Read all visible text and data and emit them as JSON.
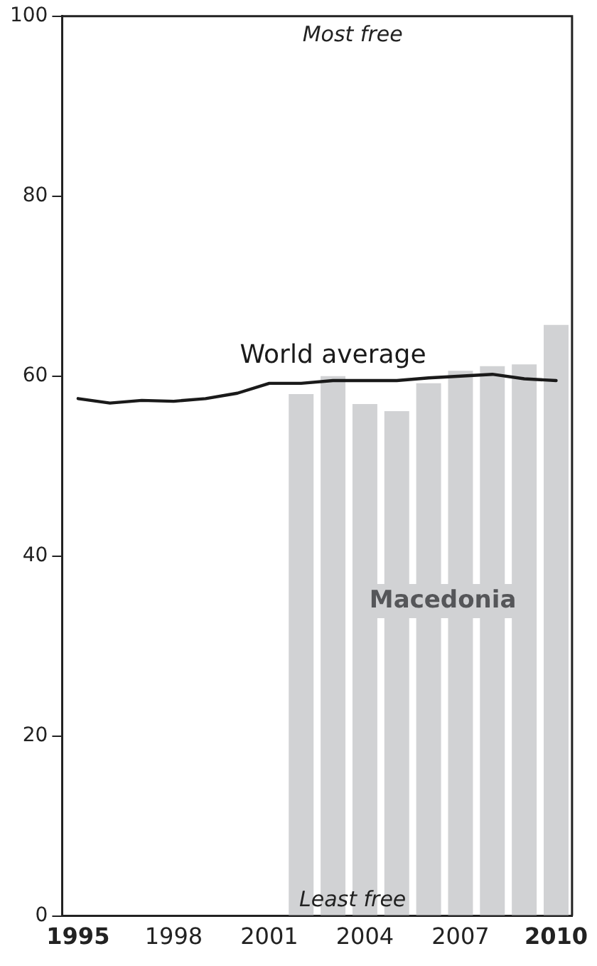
{
  "chart_data": {
    "type": "bar",
    "categories": [
      "1995",
      null,
      null,
      "1998",
      null,
      null,
      "2001",
      null,
      null,
      "2004",
      null,
      null,
      "2007",
      null,
      null,
      "2010"
    ],
    "series": [
      {
        "name": "Macedonia",
        "color": "#d1d2d4",
        "values": [
          null,
          null,
          null,
          null,
          null,
          null,
          null,
          58.0,
          60.0,
          56.9,
          56.1,
          59.2,
          60.6,
          61.1,
          61.3,
          65.7
        ]
      },
      {
        "name": "World average",
        "type": "line",
        "color": "#1a1a1a",
        "values": [
          57.5,
          57.0,
          57.3,
          57.2,
          57.5,
          58.1,
          59.2,
          59.2,
          59.5,
          59.5,
          59.5,
          59.8,
          60.0,
          60.2,
          59.7,
          59.5
        ]
      }
    ],
    "ylim": [
      0,
      100
    ],
    "yticks": [
      0,
      20,
      40,
      60,
      80,
      100
    ],
    "grid": false,
    "legend": false,
    "marker": "none",
    "line_style": "solid",
    "annotations": [
      "Most free",
      "Least free"
    ]
  }
}
